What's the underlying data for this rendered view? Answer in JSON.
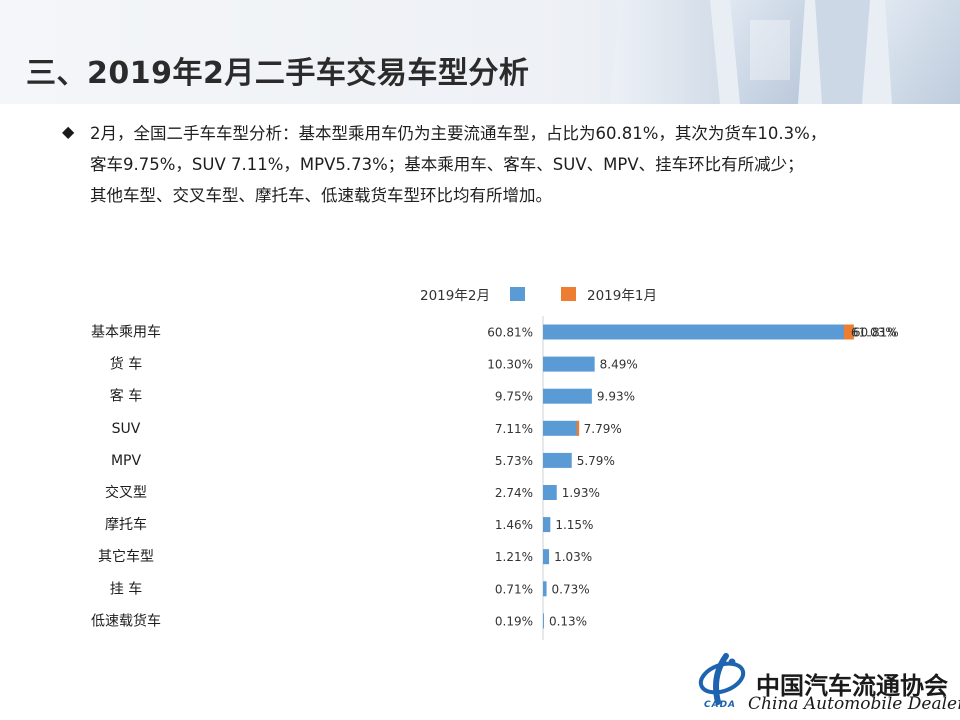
{
  "slide": {
    "title": "三、2019年2月二手车交易车型分析",
    "bullet_lines": [
      "2月，全国二手车车型分析：基本型乘用车仍为主要流通车型，占比为60.81%，其次为货车10.3%，",
      "客车9.75%，SUV 7.11%，MPV5.73%；基本乘用车、客车、SUV、MPV、挂车环比有所减少；",
      "其他车型、交叉车型、摩托车、低速载货车型环比均有所增加。"
    ],
    "bullet_icon": "diamond-bullet-icon"
  },
  "logo": {
    "name_cn": "中国汽车流通协会",
    "name_en": "China Automobile Dealers",
    "abbr": "CADA"
  },
  "chart_data": {
    "type": "bar",
    "orientation": "horizontal",
    "categories": [
      "基本乘用车",
      "货  车",
      "客  车",
      "SUV",
      "MPV",
      "交叉型",
      "摩托车",
      "其它车型",
      "挂  车",
      "低速载货车"
    ],
    "series": [
      {
        "name": "2019年2月",
        "color": "#5b9bd5",
        "values": [
          60.81,
          10.3,
          9.75,
          7.11,
          5.73,
          2.74,
          1.46,
          1.21,
          0.71,
          0.19
        ],
        "labels": [
          "60.81%",
          "10.30%",
          "9.75%",
          "7.11%",
          "5.73%",
          "2.74%",
          "1.46%",
          "1.21%",
          "0.71%",
          "0.19%"
        ]
      },
      {
        "name": "2019年1月",
        "color": "#ed7d31",
        "values": [
          61.03,
          8.49,
          9.93,
          7.79,
          5.79,
          1.93,
          1.15,
          1.03,
          0.73,
          0.13
        ],
        "labels": [
          "61.03%",
          "8.49%",
          "9.93%",
          "7.79%",
          "5.79%",
          "1.93%",
          "1.15%",
          "1.03%",
          "0.73%",
          "0.13%"
        ]
      }
    ],
    "legend_placement": "top",
    "grid": false,
    "xlim": [
      0,
      61.03
    ]
  }
}
